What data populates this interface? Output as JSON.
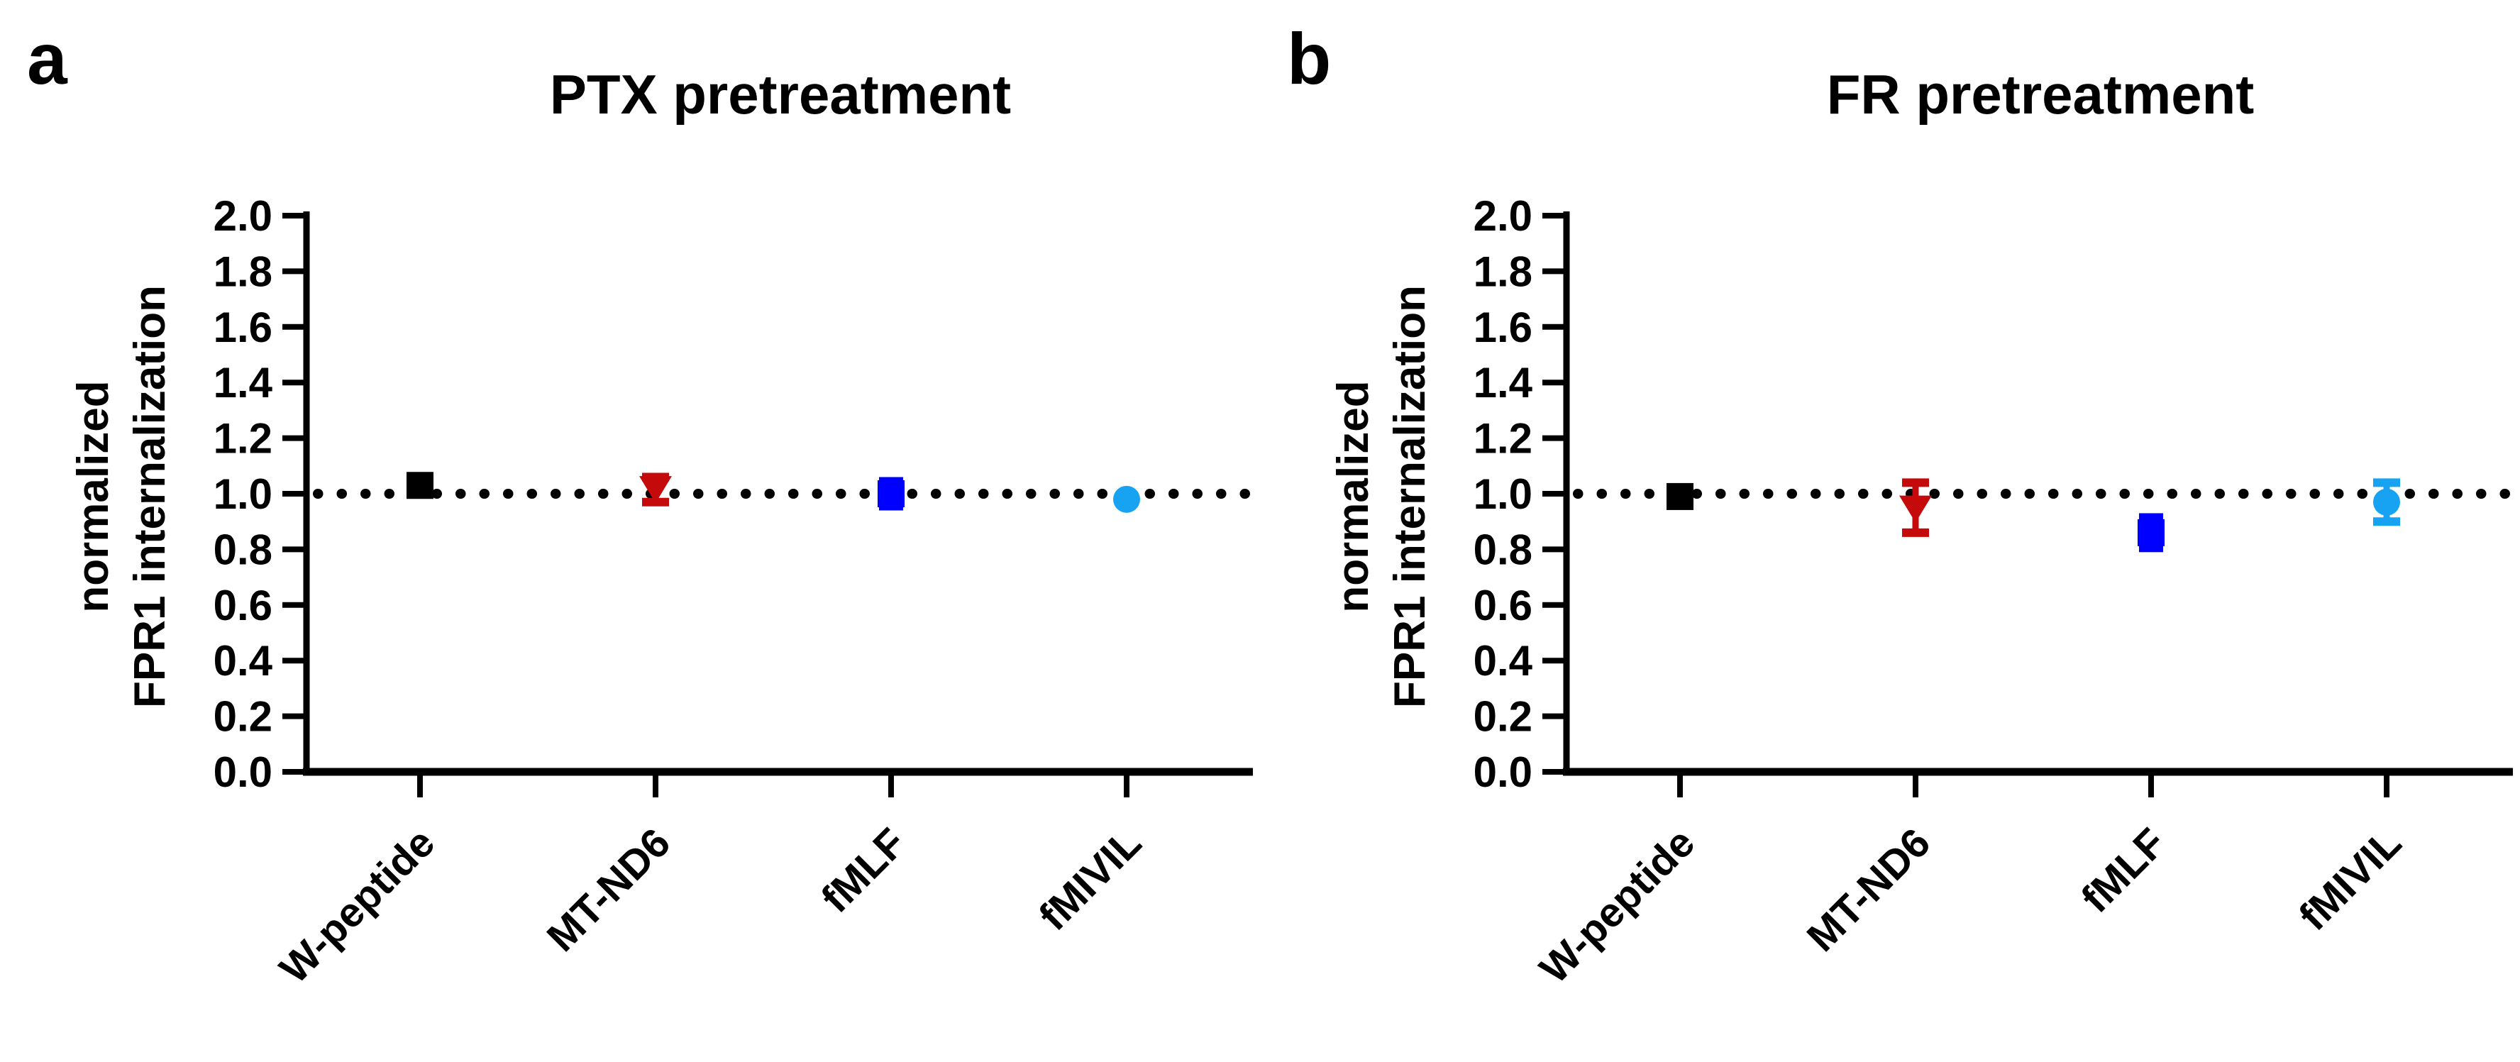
{
  "figure": {
    "background": "#ffffff",
    "axis_color": "#000000",
    "reference_line_value": 1.0,
    "reference_line_style": "dotted"
  },
  "panels": [
    {
      "letter": "a"
    },
    {
      "letter": "b"
    }
  ],
  "chart_data": [
    {
      "type": "scatter",
      "panel": "a",
      "title": "PTX pretreatment",
      "ylabel": [
        "normalized",
        "FPR1 internalization"
      ],
      "categories": [
        "W-peptide",
        "MT-ND6",
        "fMLF",
        "fMIVIL"
      ],
      "ylim": [
        0,
        2
      ],
      "ytick_step": 0.2,
      "reference_line": 1.0,
      "grid": false,
      "legend": "none",
      "series": [
        {
          "name": "W-peptide",
          "marker": "square",
          "color": "#000000",
          "y": 1.03,
          "err_lo": 1.01,
          "err_hi": 1.05,
          "err_style": "hidden"
        },
        {
          "name": "MT-ND6",
          "marker": "triangle-down",
          "color": "#C40A0A",
          "y": 1.02,
          "err_lo": 0.97,
          "err_hi": 1.06,
          "err_style": "caps"
        },
        {
          "name": "fMLF",
          "marker": "square",
          "color": "#0000FF",
          "y": 1.0,
          "err_lo": 0.94,
          "err_hi": 1.06,
          "err_style": "filled"
        },
        {
          "name": "fMIVIL",
          "marker": "circle",
          "color": "#18A3F2",
          "y": 0.98,
          "err_lo": 0.97,
          "err_hi": 0.99,
          "err_style": "hidden"
        }
      ]
    },
    {
      "type": "scatter",
      "panel": "b",
      "title": "FR pretreatment",
      "ylabel": [
        "normalized",
        "FPR1 internalization"
      ],
      "categories": [
        "W-peptide",
        "MT-ND6",
        "fMLF",
        "fMIVIL"
      ],
      "ylim": [
        0,
        2
      ],
      "ytick_step": 0.2,
      "reference_line": 1.0,
      "grid": false,
      "legend": "none",
      "series": [
        {
          "name": "W-peptide",
          "marker": "square",
          "color": "#000000",
          "y": 0.99,
          "err_lo": 0.97,
          "err_hi": 1.01,
          "err_style": "hidden"
        },
        {
          "name": "MT-ND6",
          "marker": "triangle-down",
          "color": "#C40A0A",
          "y": 0.95,
          "err_lo": 0.86,
          "err_hi": 1.04,
          "err_style": "caps"
        },
        {
          "name": "fMLF",
          "marker": "square",
          "color": "#0000FF",
          "y": 0.86,
          "err_lo": 0.79,
          "err_hi": 0.93,
          "err_style": "filled"
        },
        {
          "name": "fMIVIL",
          "marker": "circle",
          "color": "#18A3F2",
          "y": 0.97,
          "err_lo": 0.9,
          "err_hi": 1.04,
          "err_style": "caps"
        }
      ]
    }
  ]
}
